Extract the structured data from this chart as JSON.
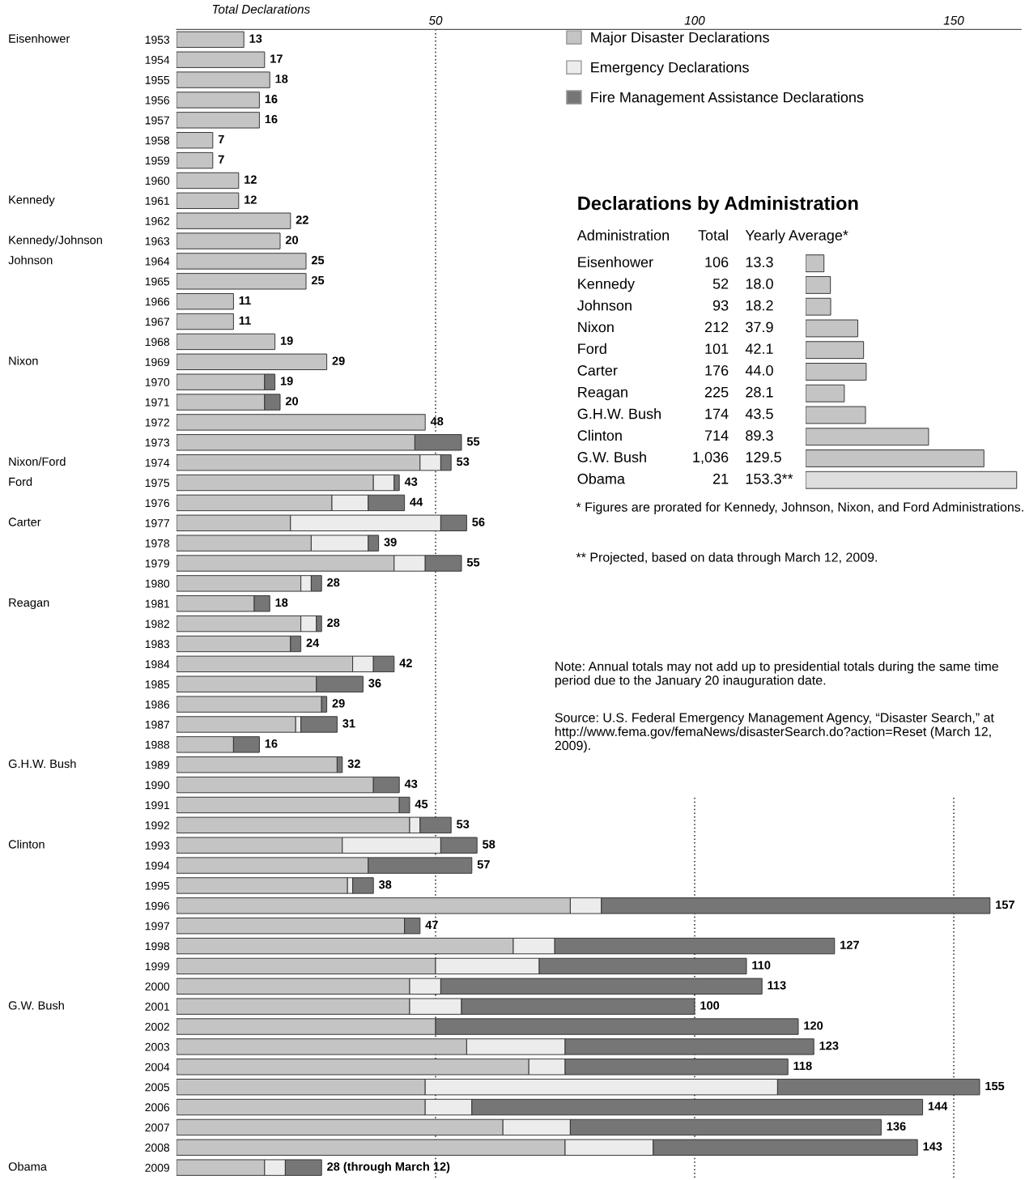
{
  "chart_data": [
    {
      "type": "bar",
      "orientation": "horizontal",
      "stacked": true,
      "xlabel": "Total Declarations",
      "xlim": [
        0,
        163
      ],
      "xticks": [
        50,
        100,
        150
      ],
      "grid": "x",
      "legend": "top right",
      "categories": [
        "1953",
        "1954",
        "1955",
        "1956",
        "1957",
        "1958",
        "1959",
        "1960",
        "1961",
        "1962",
        "1963",
        "1964",
        "1965",
        "1966",
        "1967",
        "1968",
        "1969",
        "1970",
        "1971",
        "1972",
        "1973",
        "1974",
        "1975",
        "1976",
        "1977",
        "1978",
        "1979",
        "1980",
        "1981",
        "1982",
        "1983",
        "1984",
        "1985",
        "1986",
        "1987",
        "1988",
        "1989",
        "1990",
        "1991",
        "1992",
        "1993",
        "1994",
        "1995",
        "1996",
        "1997",
        "1998",
        "1999",
        "2000",
        "2001",
        "2002",
        "2003",
        "2004",
        "2005",
        "2006",
        "2007",
        "2008",
        "2009"
      ],
      "series": [
        {
          "name": "Major Disaster Declarations",
          "color": "#c4c4c4",
          "values": [
            13,
            17,
            18,
            16,
            16,
            7,
            7,
            12,
            12,
            22,
            20,
            25,
            25,
            11,
            11,
            19,
            29,
            17,
            17,
            48,
            46,
            47,
            38,
            30,
            22,
            26,
            42,
            24,
            15,
            24,
            22,
            34,
            27,
            28,
            23,
            11,
            31,
            38,
            43,
            45,
            32,
            37,
            33,
            76,
            44,
            65,
            50,
            45,
            45,
            50,
            56,
            68,
            48,
            48,
            63,
            75,
            17
          ]
        },
        {
          "name": "Emergency Declarations",
          "color": "#ececec",
          "values": [
            null,
            null,
            null,
            null,
            null,
            null,
            null,
            null,
            null,
            null,
            null,
            null,
            null,
            null,
            null,
            null,
            null,
            null,
            null,
            null,
            null,
            4,
            4,
            7,
            29,
            11,
            6,
            2,
            null,
            3,
            null,
            4,
            null,
            null,
            1,
            null,
            null,
            null,
            null,
            2,
            19,
            null,
            1,
            6,
            null,
            8,
            20,
            6,
            10,
            null,
            19,
            7,
            68,
            9,
            13,
            17,
            4
          ]
        },
        {
          "name": "Fire Management Assistance Declarations",
          "color": "#767676",
          "values": [
            null,
            null,
            null,
            null,
            null,
            null,
            null,
            null,
            null,
            null,
            null,
            null,
            null,
            null,
            null,
            null,
            null,
            2,
            3,
            null,
            9,
            2,
            1,
            7,
            5,
            2,
            7,
            2,
            3,
            1,
            2,
            4,
            9,
            1,
            7,
            5,
            1,
            5,
            2,
            6,
            7,
            20,
            4,
            75,
            3,
            54,
            40,
            62,
            45,
            70,
            48,
            43,
            39,
            87,
            60,
            51,
            7
          ]
        }
      ],
      "totals": [
        "13",
        "17",
        "18",
        "16",
        "16",
        "7",
        "7",
        "12",
        "12",
        "22",
        "20",
        "25",
        "25",
        "11",
        "11",
        "19",
        "29",
        "19",
        "20",
        "48",
        "55",
        "53",
        "43",
        "44",
        "56",
        "39",
        "55",
        "28",
        "18",
        "28",
        "24",
        "42",
        "36",
        "29",
        "31",
        "16",
        "32",
        "43",
        "45",
        "53",
        "58",
        "57",
        "38",
        "157",
        "47",
        "127",
        "110",
        "113",
        "100",
        "120",
        "123",
        "118",
        "155",
        "144",
        "136",
        "143",
        "28 (through March 12)"
      ],
      "annotations": [
        "Eisenhower",
        "Kennedy",
        "Kennedy/Johnson",
        "Johnson",
        "Nixon",
        "Nixon/Ford",
        "Ford",
        "Carter",
        "Reagan",
        "G.H.W. Bush",
        "Clinton",
        "G.W. Bush",
        "Obama",
        "Note: Annual totals may not add up to presidential totals during the same time period due to the January 20 inauguration date.",
        "Source: U.S. Federal Emergency Management Agency, “Disaster Search,” at http://www.fema.gov/femaNews/disasterSearch.do?action=Reset (March 12, 2009)."
      ]
    },
    {
      "type": "bar",
      "orientation": "horizontal",
      "title": "Declarations by Administration",
      "ylabel": "Administration",
      "xlabel": "Yearly Average*",
      "categories": [
        "Eisenhower",
        "Kennedy",
        "Johnson",
        "Nixon",
        "Ford",
        "Carter",
        "Reagan",
        "G.H.W. Bush",
        "Clinton",
        "G.W. Bush",
        "Obama"
      ],
      "values": [
        13.3,
        18.0,
        18.2,
        37.9,
        42.1,
        44.0,
        28.1,
        43.5,
        89.3,
        129.5,
        153.3
      ],
      "value_labels": [
        "13.3",
        "18.0",
        "18.2",
        "37.9",
        "42.1",
        "44.0",
        "28.1",
        "43.5",
        "89.3",
        "129.5",
        "153.3**"
      ],
      "colors": [
        "#c4c4c4",
        "#c4c4c4",
        "#c4c4c4",
        "#c4c4c4",
        "#c4c4c4",
        "#c4c4c4",
        "#c4c4c4",
        "#c4c4c4",
        "#c4c4c4",
        "#c4c4c4",
        "#dedede"
      ],
      "annotations": [
        "Total",
        "106",
        "52",
        "93",
        "212",
        "101",
        "176",
        "225",
        "174",
        "714",
        "1,036",
        "21",
        "* Figures are prorated for Kennedy, Johnson, Nixon, and Ford Administrations.",
        "** Projected, based on data through March 12, 2009."
      ]
    }
  ]
}
